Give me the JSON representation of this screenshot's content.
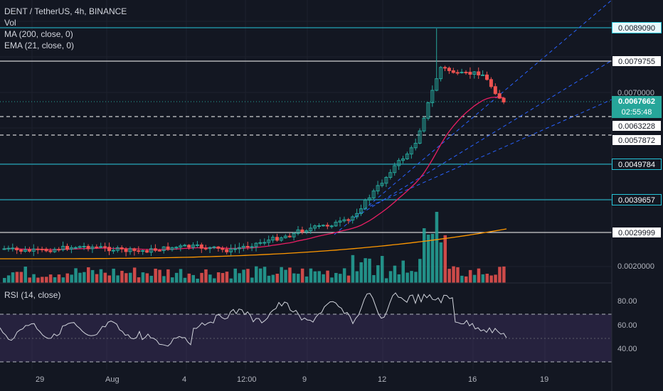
{
  "legend": {
    "symbol": "DENT / TetherUS, 4h, BINANCE",
    "vol": "Vol",
    "ma": "MA (200, close, 0)",
    "ema": "EMA (21, close, 0)",
    "rsi": "RSI (14, close)"
  },
  "price_labels": {
    "l1": "0.0089090",
    "l2": "0.0079755",
    "l3": "0.0070000",
    "current": "0.0067662",
    "timer": "02:55:48",
    "l4": "0.0063228",
    "l5": "0.0057872",
    "l6": "0.0049784",
    "l7": "0.0039657",
    "l8": "0.0029999",
    "l9": "0.0020000"
  },
  "rsi_labels": {
    "r80": "80.00",
    "r60": "60.00",
    "r40": "40.00"
  },
  "time_labels": [
    "29",
    "Aug",
    "4",
    "12:00",
    "9",
    "12",
    "16",
    "19"
  ],
  "colors": {
    "background": "#131722",
    "up": "#26a69a",
    "down": "#ef5350",
    "ema": "#e91e63",
    "ma": "#ff9800",
    "cyan_line": "#26c6da",
    "rsi_line": "#d1d4dc",
    "rsi_band": "#7e57c2",
    "trendline": "#2962ff"
  }
}
